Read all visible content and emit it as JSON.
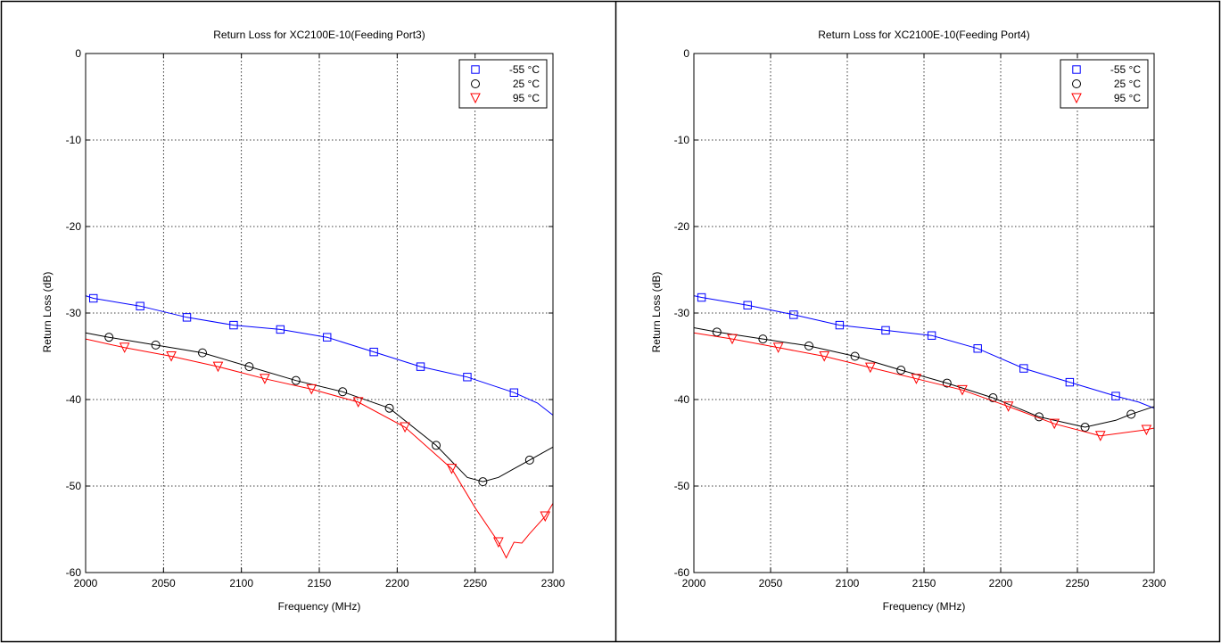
{
  "chart_data": [
    {
      "type": "line",
      "title": "Return Loss for XC2100E-10(Feeding Port3)",
      "xlabel": "Frequency (MHz)",
      "ylabel": "Return Loss (dB)",
      "xlim": [
        2000,
        2300
      ],
      "ylim": [
        -60,
        0
      ],
      "xticks": [
        2000,
        2050,
        2100,
        2150,
        2200,
        2250,
        2300
      ],
      "yticks": [
        0,
        -10,
        -20,
        -30,
        -40,
        -50,
        -60
      ],
      "grid": true,
      "legend_position": "top-right",
      "series": [
        {
          "name": "-55 °C",
          "color": "#0000ff",
          "marker": "square",
          "x": [
            2000,
            2005,
            2035,
            2065,
            2095,
            2125,
            2155,
            2185,
            2215,
            2245,
            2275,
            2290,
            2300
          ],
          "y": [
            -28.0,
            -28.3,
            -29.2,
            -30.5,
            -31.4,
            -31.9,
            -32.8,
            -34.5,
            -36.2,
            -37.4,
            -39.2,
            -40.4,
            -41.8
          ],
          "markers_x": [
            2005,
            2035,
            2065,
            2095,
            2125,
            2155,
            2185,
            2215,
            2245,
            2275
          ],
          "markers_y": [
            -28.3,
            -29.2,
            -30.5,
            -31.4,
            -31.9,
            -32.8,
            -34.5,
            -36.2,
            -37.4,
            -39.2
          ]
        },
        {
          "name": "25 °C",
          "color": "#000000",
          "marker": "circle",
          "x": [
            2000,
            2015,
            2045,
            2075,
            2105,
            2135,
            2165,
            2195,
            2225,
            2245,
            2255,
            2265,
            2275,
            2285,
            2300
          ],
          "y": [
            -32.3,
            -32.8,
            -33.7,
            -34.6,
            -36.2,
            -37.8,
            -39.1,
            -41.0,
            -45.3,
            -49.0,
            -49.5,
            -49.0,
            -48.0,
            -47.0,
            -45.5
          ],
          "markers_x": [
            2015,
            2045,
            2075,
            2105,
            2135,
            2165,
            2195,
            2225,
            2255,
            2285
          ],
          "markers_y": [
            -32.8,
            -33.7,
            -34.6,
            -36.2,
            -37.8,
            -39.1,
            -41.0,
            -45.3,
            -49.5,
            -47.0
          ]
        },
        {
          "name": "95 °C",
          "color": "#ff0000",
          "marker": "triangle-down",
          "x": [
            2000,
            2025,
            2055,
            2085,
            2115,
            2145,
            2175,
            2205,
            2235,
            2250,
            2265,
            2270,
            2275,
            2280,
            2285,
            2295,
            2300
          ],
          "y": [
            -33.0,
            -34.0,
            -35.0,
            -36.2,
            -37.6,
            -38.8,
            -40.3,
            -43.2,
            -48.0,
            -52.5,
            -56.5,
            -58.3,
            -56.5,
            -56.6,
            -55.5,
            -53.5,
            -52.0
          ],
          "markers_x": [
            2025,
            2055,
            2085,
            2115,
            2145,
            2175,
            2205,
            2235,
            2265,
            2295
          ],
          "markers_y": [
            -34.0,
            -35.0,
            -36.2,
            -37.6,
            -38.8,
            -40.3,
            -43.2,
            -48.0,
            -56.5,
            -53.5
          ]
        }
      ]
    },
    {
      "type": "line",
      "title": "Return Loss for XC2100E-10(Feeding Port4)",
      "xlabel": "Frequency (MHz)",
      "ylabel": "Return Loss (dB)",
      "xlim": [
        2000,
        2300
      ],
      "ylim": [
        -60,
        0
      ],
      "xticks": [
        2000,
        2050,
        2100,
        2150,
        2200,
        2250,
        2300
      ],
      "yticks": [
        0,
        -10,
        -20,
        -30,
        -40,
        -50,
        -60
      ],
      "grid": true,
      "legend_position": "top-right",
      "series": [
        {
          "name": "-55 °C",
          "color": "#0000ff",
          "marker": "square",
          "x": [
            2000,
            2005,
            2035,
            2065,
            2095,
            2125,
            2155,
            2185,
            2215,
            2245,
            2275,
            2290,
            2300
          ],
          "y": [
            -28.0,
            -28.2,
            -29.1,
            -30.2,
            -31.4,
            -32.0,
            -32.6,
            -34.1,
            -36.4,
            -38.0,
            -39.6,
            -40.3,
            -41.0
          ],
          "markers_x": [
            2005,
            2035,
            2065,
            2095,
            2125,
            2155,
            2185,
            2215,
            2245,
            2275
          ],
          "markers_y": [
            -28.2,
            -29.1,
            -30.2,
            -31.4,
            -32.0,
            -32.6,
            -34.1,
            -36.4,
            -38.0,
            -39.6
          ]
        },
        {
          "name": "25 °C",
          "color": "#000000",
          "marker": "circle",
          "x": [
            2000,
            2015,
            2045,
            2075,
            2105,
            2135,
            2165,
            2195,
            2225,
            2255,
            2275,
            2285,
            2300
          ],
          "y": [
            -31.7,
            -32.2,
            -33.0,
            -33.8,
            -35.0,
            -36.6,
            -38.1,
            -39.8,
            -42.0,
            -43.2,
            -42.4,
            -41.7,
            -40.8
          ],
          "markers_x": [
            2015,
            2045,
            2075,
            2105,
            2135,
            2165,
            2195,
            2225,
            2255,
            2285
          ],
          "markers_y": [
            -32.2,
            -33.0,
            -33.8,
            -35.0,
            -36.6,
            -38.1,
            -39.8,
            -42.0,
            -43.2,
            -41.7
          ]
        },
        {
          "name": "95 °C",
          "color": "#ff0000",
          "marker": "triangle-down",
          "x": [
            2000,
            2025,
            2055,
            2085,
            2115,
            2145,
            2175,
            2205,
            2235,
            2265,
            2295,
            2300
          ],
          "y": [
            -32.3,
            -33.0,
            -34.0,
            -35.0,
            -36.3,
            -37.6,
            -38.9,
            -40.8,
            -42.8,
            -44.2,
            -43.5,
            -43.3
          ],
          "markers_x": [
            2025,
            2055,
            2085,
            2115,
            2145,
            2175,
            2205,
            2235,
            2265,
            2295
          ],
          "markers_y": [
            -33.0,
            -34.0,
            -35.0,
            -36.3,
            -37.6,
            -38.9,
            -40.8,
            -42.8,
            -44.2,
            -43.5
          ]
        }
      ]
    }
  ]
}
